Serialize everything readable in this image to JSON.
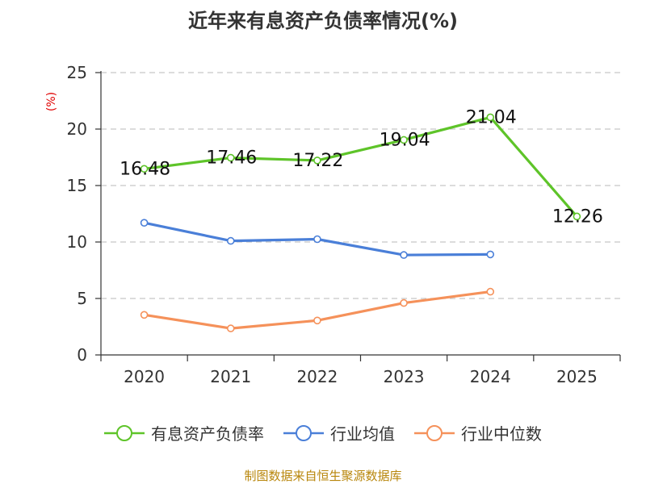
{
  "chart_data": {
    "type": "line",
    "title": "近年来有息资产负债率情况(%)",
    "ylabel": "(%)",
    "xlabel": "",
    "categories": [
      "2020",
      "2021",
      "2022",
      "2023",
      "2024",
      "2025"
    ],
    "ylim": [
      0,
      25
    ],
    "yticks": [
      0,
      5,
      10,
      15,
      20,
      25
    ],
    "grid": "horizontal-dashed",
    "legend_position": "bottom",
    "series": [
      {
        "name": "有息资产负债率",
        "color": "#5ec429",
        "values": [
          16.48,
          17.46,
          17.22,
          19.04,
          21.04,
          12.26
        ],
        "labels": [
          "16.48",
          "17.46",
          "17.22",
          "19.04",
          "21.04",
          "12.26"
        ]
      },
      {
        "name": "行业均值",
        "color": "#4a7fd8",
        "values": [
          11.7,
          10.1,
          10.25,
          8.85,
          8.9,
          null
        ]
      },
      {
        "name": "行业中位数",
        "color": "#f5915a",
        "values": [
          3.55,
          2.35,
          3.05,
          4.6,
          5.6,
          null
        ]
      }
    ]
  },
  "source": "制图数据来自恒生聚源数据库",
  "colors": {
    "axis": "#333333",
    "grid": "#c8c8c8",
    "ylabel": "#e00000"
  }
}
